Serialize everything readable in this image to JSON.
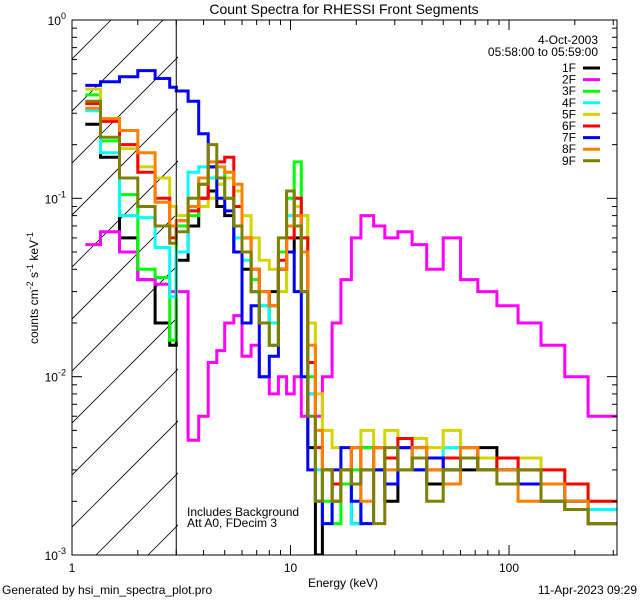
{
  "chart_data": {
    "type": "line",
    "step": true,
    "title": "Count Spectra for RHESSI Front Segments",
    "xlabel": "Energy (keV)",
    "ylabel_parts": [
      "counts cm",
      "-2",
      " s",
      "-1",
      " keV",
      "-1"
    ],
    "xscale": "log",
    "yscale": "log",
    "xlim": [
      1,
      312
    ],
    "ylim": [
      0.001,
      1
    ],
    "x_tick_labels": [
      "1",
      "10",
      "100"
    ],
    "x_tick_values": [
      1,
      10,
      100
    ],
    "y_tick_labels": [
      {
        "base": "10",
        "exp": "0"
      },
      {
        "base": "10",
        "exp": "-1"
      },
      {
        "base": "10",
        "exp": "-2"
      },
      {
        "base": "10",
        "exp": "-3"
      }
    ],
    "y_tick_values": [
      1,
      0.1,
      0.01,
      0.001
    ],
    "shaded_region": [
      1,
      3
    ],
    "vertical_line": 3,
    "legend": {
      "placement": "top-right",
      "date": "4-Oct-2003",
      "time_range": "05:58:00 to 05:59:00"
    },
    "annotations": [
      "Includes Background",
      "Att A0, FDecim 3"
    ],
    "footer_left": "Generated by hsi_min_spectra_plot.pro",
    "footer_right": "11-Apr-2023 09:29",
    "energy_edges": [
      1.15,
      1.35,
      1.65,
      2.0,
      2.4,
      2.8,
      3.0,
      3.4,
      3.8,
      4.2,
      4.6,
      5.0,
      5.5,
      6.0,
      6.6,
      7.2,
      8.0,
      8.8,
      9.6,
      10.4,
      11.2,
      12,
      13,
      14,
      15.5,
      17,
      19,
      21,
      24,
      27,
      31,
      36,
      42,
      50,
      60,
      72,
      88,
      110,
      140,
      180,
      230,
      310
    ],
    "series": [
      {
        "name": "1F",
        "color": "#000000",
        "values": [
          0.26,
          0.17,
          0.06,
          0.035,
          0.02,
          0.015,
          0.045,
          0.07,
          0.1,
          0.11,
          0.09,
          0.08,
          0.05,
          0.04,
          0.03,
          0.02,
          0.03,
          0.04,
          0.05,
          0.06,
          0.03,
          0.004,
          0.001,
          0.003,
          0.002,
          0.003,
          0.0015,
          0.004,
          0.003,
          0.002,
          0.004,
          0.003,
          0.0025,
          0.003,
          0.003,
          0.004,
          0.003,
          0.0025,
          0.002,
          0.0018,
          0.0015
        ]
      },
      {
        "name": "2F",
        "color": "#ff00ff",
        "values": [
          0.055,
          0.065,
          0.05,
          0.035,
          0.033,
          0.03,
          0.03,
          0.0044,
          0.006,
          0.012,
          0.014,
          0.02,
          0.022,
          0.013,
          0.015,
          0.01,
          0.008,
          0.01,
          0.008,
          0.01,
          0.006,
          0.008,
          0.006,
          0.01,
          0.02,
          0.035,
          0.06,
          0.08,
          0.07,
          0.06,
          0.065,
          0.055,
          0.04,
          0.06,
          0.035,
          0.03,
          0.025,
          0.02,
          0.015,
          0.01,
          0.006
        ]
      },
      {
        "name": "3F",
        "color": "#00ff00",
        "values": [
          0.38,
          0.21,
          0.105,
          0.04,
          0.036,
          0.016,
          0.07,
          0.08,
          0.12,
          0.15,
          0.13,
          0.14,
          0.09,
          0.05,
          0.035,
          0.025,
          0.015,
          0.05,
          0.1,
          0.16,
          0.08,
          0.01,
          0.004,
          0.002,
          0.0015,
          0.0025,
          0.003,
          0.004,
          0.003,
          0.0035,
          0.004,
          0.003,
          0.0035,
          0.003,
          0.004,
          0.003,
          0.0035,
          0.003,
          0.0025,
          0.002,
          0.0018
        ]
      },
      {
        "name": "4F",
        "color": "#00ffff",
        "values": [
          0.31,
          0.18,
          0.08,
          0.078,
          0.053,
          0.028,
          0.05,
          0.14,
          0.15,
          0.13,
          0.12,
          0.1,
          0.06,
          0.045,
          0.03,
          0.025,
          0.02,
          0.03,
          0.08,
          0.1,
          0.06,
          0.008,
          0.003,
          0.0015,
          0.002,
          0.003,
          0.0015,
          0.003,
          0.004,
          0.003,
          0.003,
          0.0035,
          0.003,
          0.004,
          0.0035,
          0.003,
          0.003,
          0.0025,
          0.0025,
          0.002,
          0.0018
        ]
      },
      {
        "name": "5F",
        "color": "#d4d400",
        "values": [
          0.41,
          0.28,
          0.19,
          0.15,
          0.13,
          0.09,
          0.08,
          0.085,
          0.09,
          0.1,
          0.12,
          0.13,
          0.11,
          0.08,
          0.06,
          0.045,
          0.04,
          0.03,
          0.06,
          0.09,
          0.08,
          0.02,
          0.008,
          0.005,
          0.004,
          0.003,
          0.004,
          0.005,
          0.004,
          0.005,
          0.004,
          0.0045,
          0.004,
          0.005,
          0.004,
          0.0035,
          0.003,
          0.0035,
          0.003,
          0.0025,
          0.002
        ]
      },
      {
        "name": "6F",
        "color": "#ff0000",
        "values": [
          0.34,
          0.27,
          0.2,
          0.14,
          0.1,
          0.06,
          0.075,
          0.085,
          0.1,
          0.15,
          0.16,
          0.17,
          0.09,
          0.06,
          0.04,
          0.03,
          0.025,
          0.045,
          0.06,
          0.1,
          0.06,
          0.012,
          0.004,
          0.003,
          0.0025,
          0.003,
          0.004,
          0.003,
          0.004,
          0.0035,
          0.0045,
          0.004,
          0.003,
          0.0035,
          0.004,
          0.003,
          0.0035,
          0.003,
          0.003,
          0.0025,
          0.002
        ]
      },
      {
        "name": "7F",
        "color": "#0000ff",
        "values": [
          0.43,
          0.45,
          0.48,
          0.52,
          0.47,
          0.42,
          0.4,
          0.35,
          0.23,
          0.15,
          0.1,
          0.085,
          0.05,
          0.02,
          0.025,
          0.01,
          0.013,
          0.04,
          0.05,
          0.03,
          0.01,
          0.003,
          0.002,
          0.0015,
          0.003,
          0.004,
          0.002,
          0.0015,
          0.003,
          0.0025,
          0.004,
          0.003,
          0.0035,
          0.003,
          0.0035,
          0.003,
          0.003,
          0.0025,
          0.0025,
          0.002,
          0.0015
        ]
      },
      {
        "name": "8F",
        "color": "#ff8000",
        "values": [
          0.32,
          0.28,
          0.24,
          0.18,
          0.095,
          0.07,
          0.075,
          0.09,
          0.13,
          0.16,
          0.15,
          0.14,
          0.12,
          0.06,
          0.04,
          0.03,
          0.025,
          0.04,
          0.07,
          0.08,
          0.05,
          0.015,
          0.005,
          0.003,
          0.002,
          0.003,
          0.004,
          0.002,
          0.004,
          0.003,
          0.003,
          0.004,
          0.003,
          0.0025,
          0.004,
          0.003,
          0.003,
          0.002,
          0.0025,
          0.002,
          0.0015
        ]
      },
      {
        "name": "9F",
        "color": "#808000",
        "values": [
          0.35,
          0.22,
          0.13,
          0.09,
          0.07,
          0.056,
          0.065,
          0.1,
          0.12,
          0.2,
          0.13,
          0.1,
          0.07,
          0.05,
          0.03,
          0.02,
          0.015,
          0.06,
          0.11,
          0.07,
          0.03,
          0.006,
          0.002,
          0.003,
          0.002,
          0.003,
          0.0025,
          0.003,
          0.0015,
          0.004,
          0.003,
          0.0035,
          0.002,
          0.003,
          0.0035,
          0.003,
          0.0025,
          0.003,
          0.002,
          0.0018,
          0.0015
        ]
      }
    ]
  }
}
